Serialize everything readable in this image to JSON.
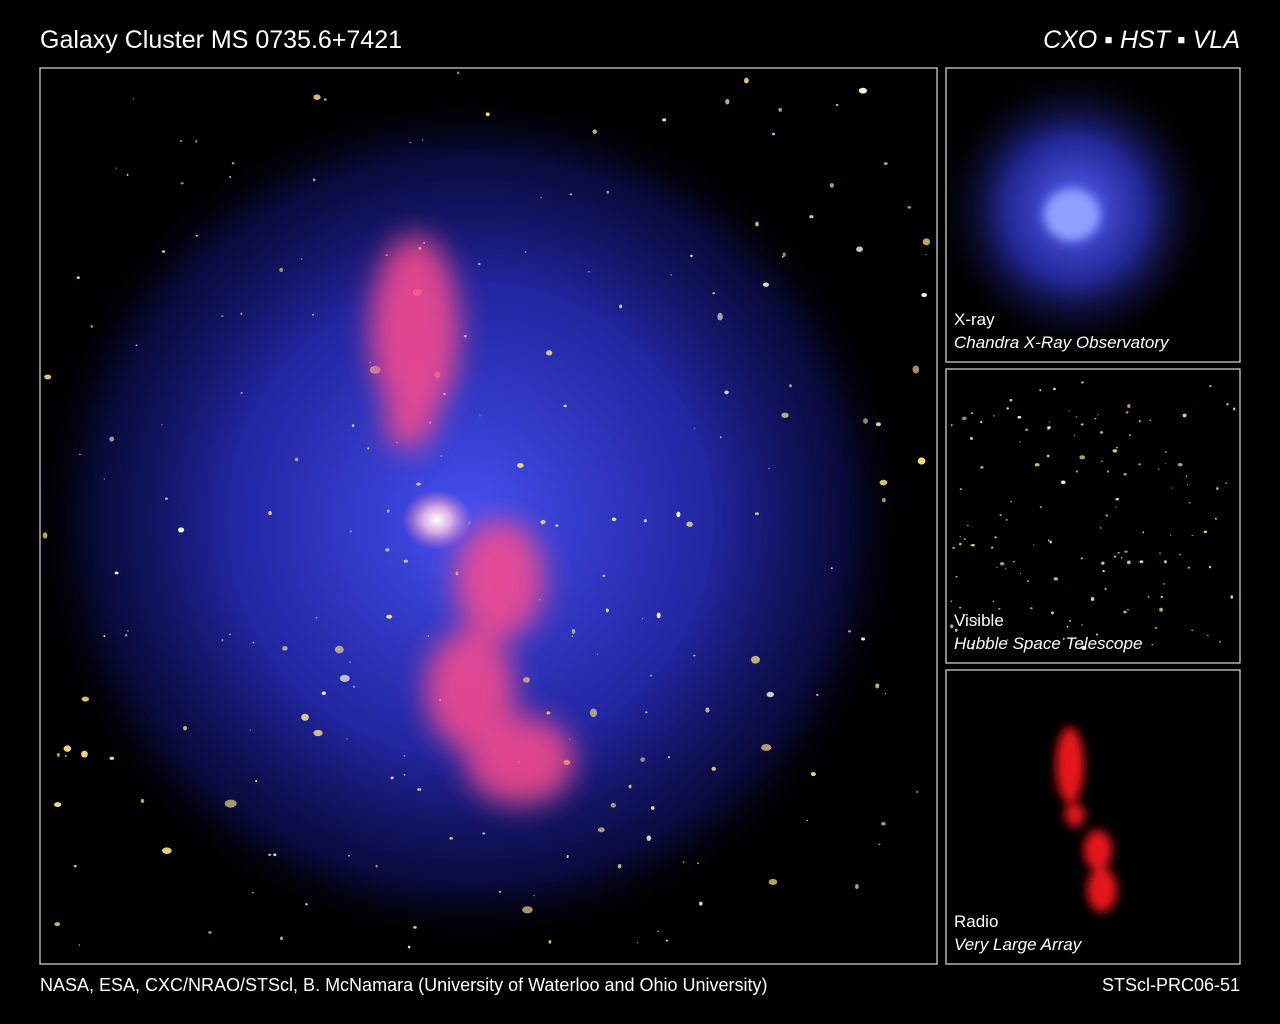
{
  "header": {
    "title": "Galaxy Cluster MS 0735.6+7421",
    "observatories": "CXO ▪ HST ▪ VLA"
  },
  "panels": [
    {
      "label": "X-ray",
      "source": "Chandra X-Ray Observatory"
    },
    {
      "label": "Visible",
      "source": "Hubble Space Telescope"
    },
    {
      "label": "Radio",
      "source": "Very Large Array"
    }
  ],
  "footer": {
    "credit": "NASA, ESA, CXC/NRAO/STScl, B. McNamara (University of Waterloo and Ohio University)",
    "id": "STScl-PRC06-51"
  }
}
